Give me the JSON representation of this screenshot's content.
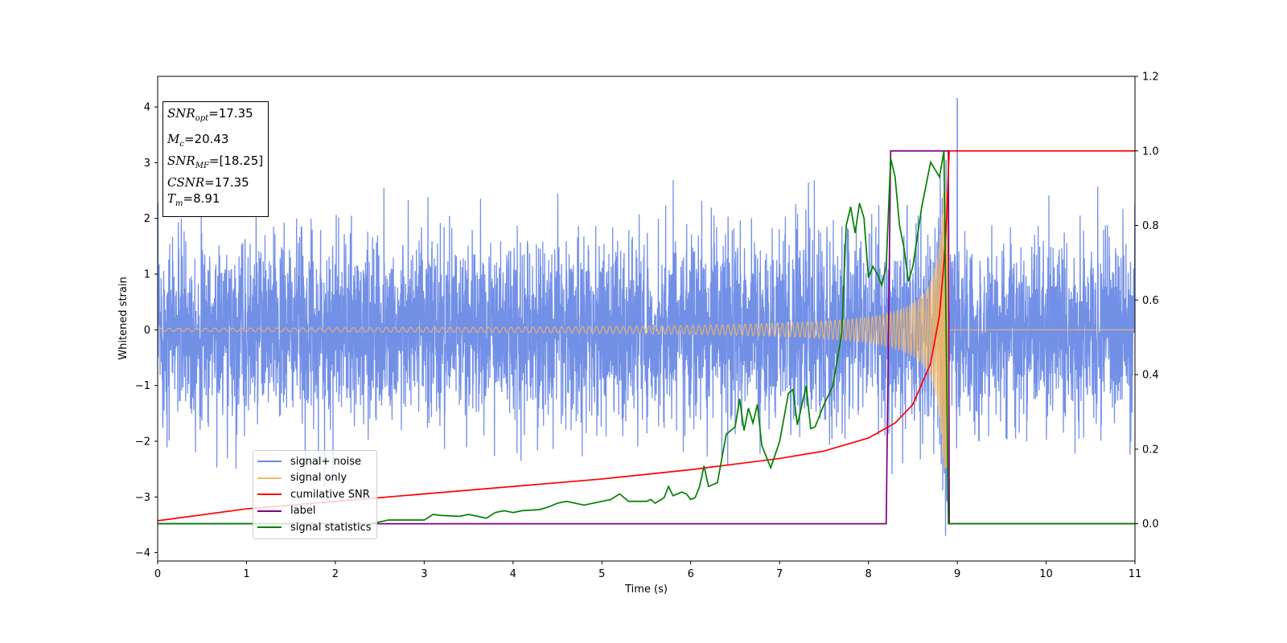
{
  "chart_data": {
    "type": "line",
    "xlabel": "Time (s)",
    "ylabel": "Whitened strain",
    "xlim": [
      0,
      11
    ],
    "ylim_left": [
      -4.15,
      4.55
    ],
    "ylim_right": [
      -0.1,
      1.2
    ],
    "x_ticks": [
      "0",
      "1",
      "2",
      "3",
      "4",
      "5",
      "6",
      "7",
      "8",
      "9",
      "10",
      "11"
    ],
    "y_left_ticks": [
      "−4",
      "−3",
      "−2",
      "−1",
      "0",
      "1",
      "2",
      "3",
      "4"
    ],
    "y_right_ticks": [
      "0.0",
      "0.2",
      "0.4",
      "0.6",
      "0.8",
      "1.0",
      "1.2"
    ],
    "annotations": {
      "snr_opt": {
        "label": "SNR",
        "sub": "opt",
        "value": "=17.35"
      },
      "mc": {
        "label": "M",
        "sub": "c",
        "value": "=20.43"
      },
      "snr_mf": {
        "label": "SNR",
        "sub": "MF",
        "value": "=[18.25]"
      },
      "csnr": {
        "label": "CSNR",
        "value": "=17.35"
      },
      "tm": {
        "label": "T",
        "sub": "m",
        "value": "=8.91"
      }
    },
    "series": [
      {
        "name": "signal+ noise",
        "color": "#6b8ae6",
        "axis": "left",
        "description_values": {
          "noise_std": 0.8,
          "peak_time": 9.0,
          "peak_value": 4.15,
          "min_value": -3.75
        }
      },
      {
        "name": "signal only",
        "color": "#f5b860",
        "axis": "left",
        "chirp": {
          "merger_time": 8.91,
          "peak_amplitude": 2.5,
          "start_amplitude": 0.03
        }
      },
      {
        "name": "cumilative SNR",
        "color": "#ff0000",
        "axis": "right",
        "x": [
          0,
          1,
          2,
          3,
          4,
          5,
          6,
          7,
          7.5,
          8,
          8.3,
          8.5,
          8.7,
          8.8,
          8.85,
          8.88,
          8.9,
          8.91,
          9,
          11
        ],
        "y": [
          0.008,
          0.04,
          0.06,
          0.08,
          0.1,
          0.12,
          0.145,
          0.175,
          0.195,
          0.23,
          0.27,
          0.32,
          0.43,
          0.56,
          0.7,
          0.82,
          0.95,
          1.0,
          1.0,
          1.0
        ]
      },
      {
        "name": "label",
        "color": "#800080",
        "axis": "right",
        "x": [
          0,
          8.2,
          8.25,
          8.9,
          8.91,
          11
        ],
        "y": [
          0.0,
          0.0,
          1.0,
          1.0,
          0.0,
          0.0
        ]
      },
      {
        "name": "signal statistics",
        "color": "#008000",
        "axis": "right",
        "x": [
          0,
          2.4,
          2.6,
          3.0,
          3.1,
          3.2,
          3.4,
          3.5,
          3.7,
          3.8,
          3.9,
          4.0,
          4.1,
          4.3,
          4.4,
          4.5,
          4.6,
          4.7,
          4.8,
          4.9,
          5.0,
          5.1,
          5.2,
          5.3,
          5.5,
          5.55,
          5.6,
          5.7,
          5.75,
          5.8,
          5.9,
          5.95,
          6.0,
          6.05,
          6.1,
          6.15,
          6.2,
          6.3,
          6.4,
          6.5,
          6.55,
          6.6,
          6.65,
          6.7,
          6.75,
          6.8,
          6.9,
          7.0,
          7.1,
          7.15,
          7.2,
          7.3,
          7.35,
          7.4,
          7.5,
          7.6,
          7.65,
          7.7,
          7.75,
          7.8,
          7.85,
          7.9,
          7.95,
          8.0,
          8.05,
          8.1,
          8.15,
          8.2,
          8.25,
          8.3,
          8.35,
          8.4,
          8.45,
          8.5,
          8.6,
          8.7,
          8.8,
          8.85,
          8.9,
          8.95,
          11
        ],
        "y": [
          0.0,
          0.0,
          0.01,
          0.01,
          0.025,
          0.022,
          0.02,
          0.025,
          0.015,
          0.03,
          0.035,
          0.03,
          0.035,
          0.038,
          0.045,
          0.055,
          0.06,
          0.055,
          0.05,
          0.055,
          0.06,
          0.065,
          0.08,
          0.06,
          0.06,
          0.065,
          0.055,
          0.07,
          0.1,
          0.075,
          0.085,
          0.08,
          0.065,
          0.07,
          0.1,
          0.155,
          0.1,
          0.11,
          0.24,
          0.26,
          0.335,
          0.25,
          0.31,
          0.27,
          0.32,
          0.21,
          0.15,
          0.22,
          0.35,
          0.36,
          0.265,
          0.37,
          0.255,
          0.26,
          0.32,
          0.37,
          0.44,
          0.51,
          0.8,
          0.85,
          0.78,
          0.86,
          0.82,
          0.66,
          0.69,
          0.67,
          0.64,
          0.69,
          0.98,
          0.93,
          0.8,
          0.74,
          0.65,
          0.69,
          0.85,
          0.97,
          0.93,
          1.0,
          0.0,
          0.0,
          0.0
        ]
      }
    ],
    "legend": {
      "placement": "lower-left",
      "items": [
        "signal+ noise",
        "signal only",
        "cumilative SNR",
        "label",
        "signal statistics"
      ]
    }
  }
}
